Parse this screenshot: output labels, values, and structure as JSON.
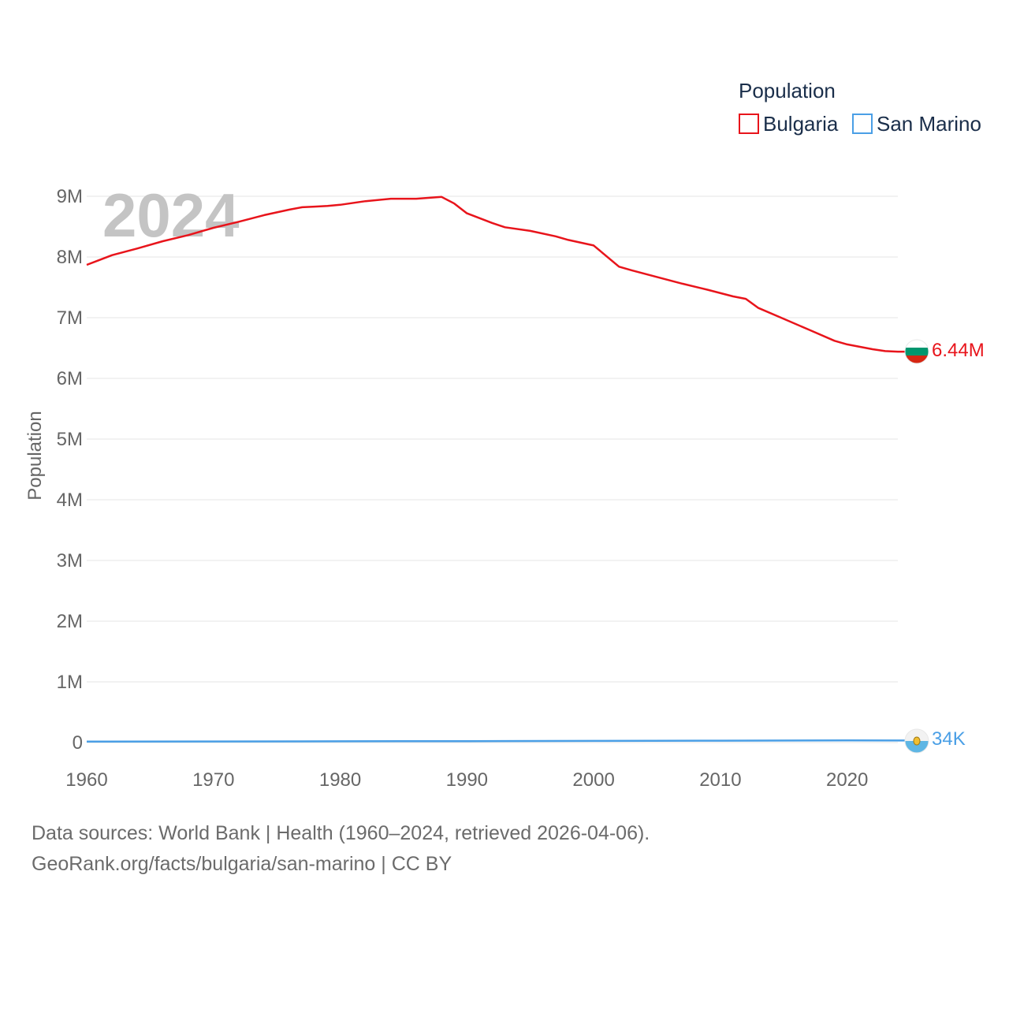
{
  "chart_data": {
    "type": "line",
    "year_label": "2024",
    "xlabel": "",
    "ylabel": "Population",
    "xlim": [
      1960,
      2024
    ],
    "ylim": [
      0,
      9000000
    ],
    "x_ticks": [
      {
        "value": 1960,
        "label": "1960"
      },
      {
        "value": 1970,
        "label": "1970"
      },
      {
        "value": 1980,
        "label": "1980"
      },
      {
        "value": 1990,
        "label": "1990"
      },
      {
        "value": 2000,
        "label": "2000"
      },
      {
        "value": 2010,
        "label": "2010"
      },
      {
        "value": 2020,
        "label": "2020"
      }
    ],
    "y_ticks": [
      {
        "value": 0,
        "label": "0"
      },
      {
        "value": 1000000,
        "label": "1M"
      },
      {
        "value": 2000000,
        "label": "2M"
      },
      {
        "value": 3000000,
        "label": "3M"
      },
      {
        "value": 4000000,
        "label": "4M"
      },
      {
        "value": 5000000,
        "label": "5M"
      },
      {
        "value": 6000000,
        "label": "6M"
      },
      {
        "value": 7000000,
        "label": "7M"
      },
      {
        "value": 8000000,
        "label": "8M"
      },
      {
        "value": 9000000,
        "label": "9M"
      }
    ],
    "legend": {
      "title": "Population",
      "position": "top-right"
    },
    "series": [
      {
        "name": "Bulgaria",
        "color": "#e8141b",
        "end_label": "6.44M",
        "flag_icon": "bulgaria-flag-icon",
        "x": [
          1960,
          1962,
          1964,
          1966,
          1968,
          1970,
          1972,
          1974,
          1976,
          1977,
          1978,
          1979,
          1980,
          1982,
          1984,
          1986,
          1988,
          1989,
          1990,
          1992,
          1993,
          1995,
          1997,
          1998,
          2000,
          2002,
          2003,
          2005,
          2007,
          2009,
          2011,
          2012,
          2013,
          2015,
          2017,
          2019,
          2020,
          2022,
          2023,
          2024
        ],
        "values": [
          7870000,
          8030000,
          8140000,
          8260000,
          8360000,
          8480000,
          8580000,
          8690000,
          8780000,
          8820000,
          8830000,
          8840000,
          8860000,
          8920000,
          8960000,
          8960000,
          8990000,
          8880000,
          8720000,
          8560000,
          8490000,
          8430000,
          8340000,
          8280000,
          8190000,
          7840000,
          7780000,
          7670000,
          7560000,
          7460000,
          7350000,
          7310000,
          7160000,
          6980000,
          6800000,
          6620000,
          6560000,
          6480000,
          6450000,
          6440000
        ]
      },
      {
        "name": "San Marino",
        "color": "#4a9fe6",
        "end_label": "34K",
        "flag_icon": "san-marino-flag-icon",
        "x": [
          1960,
          1970,
          1980,
          1990,
          2000,
          2010,
          2020,
          2024
        ],
        "values": [
          15400,
          18800,
          21300,
          23100,
          27400,
          31600,
          34600,
          34000
        ]
      }
    ]
  },
  "footer": {
    "sources": "Data sources: World Bank | Health (1960–2024, retrieved 2026-04-06).",
    "link": "GeoRank.org/facts/bulgaria/san-marino | CC BY"
  }
}
